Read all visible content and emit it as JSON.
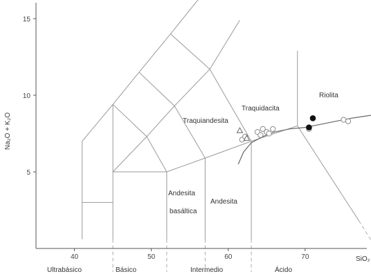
{
  "chart_data": {
    "type": "scatter",
    "xlabel": "SiO₂",
    "ylabel": "Na₂O + K₂O",
    "xlim": [
      35,
      82
    ],
    "ylim": [
      0,
      16
    ],
    "x_ticks": [
      "40",
      "50",
      "60",
      "70"
    ],
    "y_ticks": [
      "5",
      "10",
      "15"
    ],
    "grid": false,
    "field_labels": {
      "traquiandesita": "Traquiandesita",
      "traquidacita": "Traquidacita",
      "riolita": "Riolita",
      "andesita_basaltica_1": "Andesita",
      "andesita_basaltica_2": "basáltica",
      "andesita": "Andesita"
    },
    "classes": [
      "Ultrabásico",
      "Básico",
      "Intermedio",
      "Ácido"
    ],
    "series": [
      {
        "marker": "open-circle",
        "x": [
          61.8,
          62.2,
          63.8,
          64.2,
          64.5,
          65.0,
          65.3,
          65.8,
          70.5,
          75.0,
          75.6
        ],
        "y": [
          7.1,
          7.3,
          7.6,
          7.4,
          7.8,
          7.6,
          7.5,
          7.8,
          7.8,
          8.4,
          8.3
        ]
      },
      {
        "marker": "open-triangle",
        "x": [
          61.5,
          62.4
        ],
        "y": [
          7.7,
          7.2
        ]
      },
      {
        "marker": "filled-circle",
        "x": [
          70.5,
          71.0
        ],
        "y": [
          7.9,
          8.5
        ]
      }
    ]
  }
}
